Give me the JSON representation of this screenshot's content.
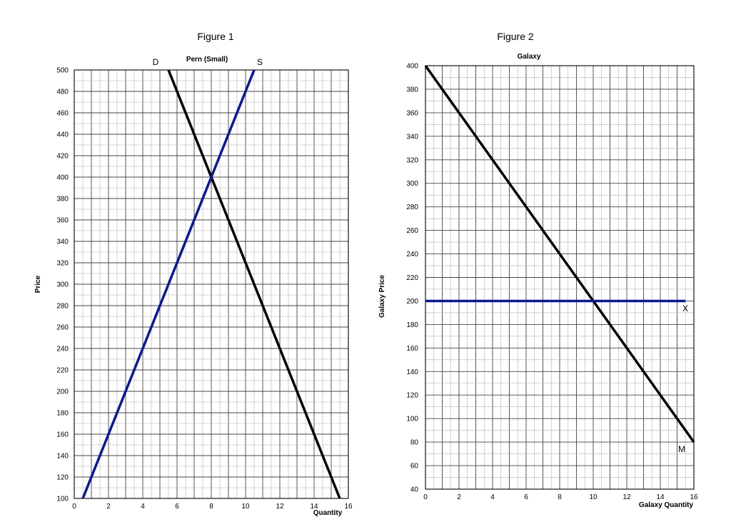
{
  "figures": [
    {
      "heading": "Figure 1"
    },
    {
      "heading": "Figure 2"
    }
  ],
  "chart_data": [
    {
      "type": "line",
      "title": "Pern (Small)",
      "xlabel": "Quantity",
      "ylabel": "Price",
      "xlim": [
        0,
        16
      ],
      "ylim": [
        100,
        500
      ],
      "xticks": [
        "0",
        "2",
        "4",
        "6",
        "8",
        "10",
        "12",
        "14",
        "16"
      ],
      "yticks": [
        "100",
        "120",
        "140",
        "160",
        "180",
        "200",
        "220",
        "240",
        "260",
        "280",
        "300",
        "320",
        "340",
        "360",
        "380",
        "400",
        "420",
        "440",
        "460",
        "480",
        "500"
      ],
      "grid": true,
      "series": [
        {
          "name": "D",
          "color": "#000000",
          "x": [
            5.5,
            15.5
          ],
          "y": [
            500,
            100
          ]
        },
        {
          "name": "S",
          "color": "#0a1a8c",
          "x": [
            0.5,
            10.5
          ],
          "y": [
            100,
            500
          ]
        }
      ]
    },
    {
      "type": "line",
      "title": "Galaxy",
      "xlabel": "Galaxy Quantity",
      "ylabel": "Galaxy Price",
      "xlim": [
        0,
        16
      ],
      "ylim": [
        40,
        400
      ],
      "xticks": [
        "0",
        "2",
        "4",
        "6",
        "8",
        "10",
        "12",
        "14",
        "16"
      ],
      "yticks": [
        "40",
        "60",
        "80",
        "100",
        "120",
        "140",
        "160",
        "180",
        "200",
        "220",
        "240",
        "260",
        "280",
        "300",
        "320",
        "340",
        "360",
        "380",
        "400"
      ],
      "grid": true,
      "series": [
        {
          "name": "M",
          "color": "#000000",
          "x": [
            0,
            16
          ],
          "y": [
            400,
            80
          ]
        },
        {
          "name": "X",
          "color": "#0a1a8c",
          "x": [
            0,
            15.5
          ],
          "y": [
            200,
            200
          ]
        }
      ]
    }
  ]
}
